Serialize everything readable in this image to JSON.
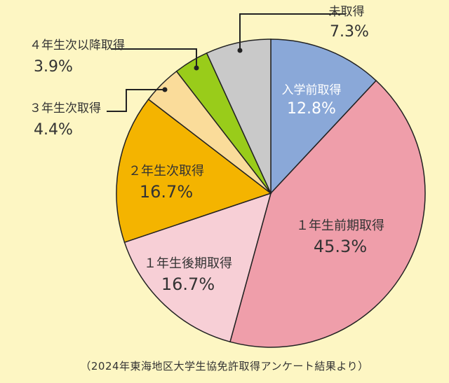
{
  "chart_data": {
    "type": "pie",
    "start": "top",
    "direction": "clockwise",
    "slices": [
      {
        "name": "入学前取得",
        "value": 12.8,
        "label": "12.8%",
        "color": "#8aa8d8"
      },
      {
        "name": "１年生前期取得",
        "value": 45.3,
        "label": "45.3%",
        "color": "#ef9eaa"
      },
      {
        "name": "１年生後期取得",
        "value": 16.7,
        "label": "16.7%",
        "color": "#f7cfd6"
      },
      {
        "name": "２年生次取得",
        "value": 16.7,
        "label": "16.7%",
        "color": "#f4b400"
      },
      {
        "name": "３年生次取得",
        "value": 4.4,
        "label": "4.4%",
        "color": "#fadc9a"
      },
      {
        "name": "４年生次以降取得",
        "value": 3.9,
        "label": "3.9%",
        "color": "#99cc1a"
      },
      {
        "name": "未取得",
        "value": 7.3,
        "label": "7.3%",
        "color": "#c9c9c9"
      }
    ]
  },
  "caption": "（2024年東海地区大学生協免許取得アンケート結果より）"
}
